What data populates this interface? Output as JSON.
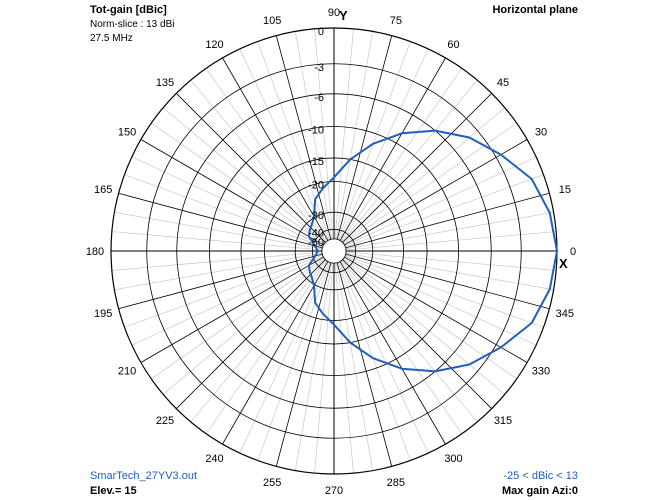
{
  "header": {
    "title": "Tot-gain [dBic]",
    "norm_slice": "Norm-slice : 13 dBi",
    "frequency": "27.5 MHz",
    "plane": "Horizontal plane"
  },
  "footer": {
    "filename": "SmarTech_27YV3.out",
    "elevation": "Elev.= 15",
    "range": "-25 < dBic < 13",
    "max_gain": "Max gain Azi:0"
  },
  "axis_markers": {
    "y": "Y",
    "x": "X"
  },
  "colors": {
    "trace": "#1f5fbf",
    "grid": "#c8c8c8",
    "ring": "#000000",
    "footer_text": "#1f5fbf"
  },
  "chart_data": {
    "type": "polar",
    "title": "Tot-gain [dBic]",
    "angle_labels": [
      "0",
      "15",
      "30",
      "45",
      "60",
      "75",
      "90",
      "105",
      "120",
      "135",
      "150",
      "165",
      "180",
      "195",
      "210",
      "225",
      "240",
      "255",
      "270",
      "285",
      "300",
      "315",
      "330",
      "345"
    ],
    "radial_labels": [
      "0",
      "-3",
      "-6",
      "-10",
      "-15",
      "-20",
      "-30",
      "-40",
      "-50"
    ],
    "radial_values": [
      0,
      -3,
      -6,
      -10,
      -15,
      -20,
      -30,
      -40,
      -50
    ],
    "angle_step_deg": 15,
    "minor_angle_step_deg": 5,
    "series": [
      {
        "azimuth_deg": [
          0,
          10,
          20,
          30,
          40,
          50,
          60,
          70,
          80,
          90,
          100,
          110,
          120,
          130,
          140,
          150,
          160,
          170,
          180,
          190,
          200,
          210,
          220,
          230,
          240,
          250,
          260,
          270,
          280,
          290,
          300,
          310,
          320,
          330,
          340,
          350,
          360
        ],
        "gain_db": [
          0,
          -0.3,
          -1,
          -2.5,
          -4,
          -6,
          -8.5,
          -11.5,
          -15,
          -19,
          -21.5,
          -24,
          -29.5,
          -32,
          -33.5,
          -35,
          -40,
          -43,
          -45,
          -43,
          -40,
          -35,
          -33.5,
          -32,
          -29.5,
          -24,
          -21.5,
          -19,
          -15,
          -11.5,
          -8.5,
          -6,
          -4,
          -2.5,
          -1,
          -0.3,
          0
        ]
      }
    ]
  }
}
